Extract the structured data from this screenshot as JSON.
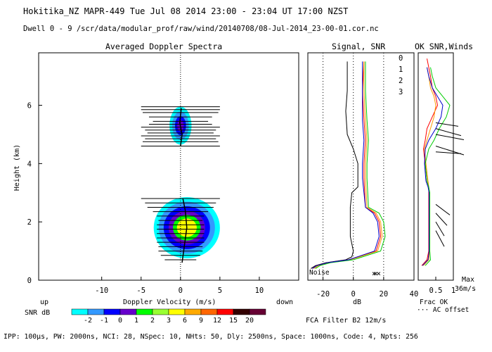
{
  "header": {
    "line1": "Hokitika_NZ   MAPR-449  Tue Jul 08 2014 23:00 - 23:04 UT 17:00 NZST",
    "line2": "Dwell  0 - 9  /scr/data/modular_prof/raw/wind/20140708/08-Jul-2014_23-00-01.cor.nc"
  },
  "footer": {
    "line": "IPP: 100µs,  PW: 2000ns,  NCI:  28,  NSpec: 10, NHts: 50,  Dly: 2500ns,  Space: 1000ns,  Code: 4,  Npts: 256",
    "filter": "FCA Filter B2 12m/s"
  },
  "panels": {
    "spectra_title": "Averaged Doppler Spectra",
    "signal_title": "Signal, SNR",
    "ok_title": "OK SNR,Winds",
    "noise_label": "Noise",
    "up_label": "up",
    "down_label": "down",
    "snr_label": "SNR dB",
    "frac_ok": "Frac OK",
    "ac_offset": "··· AC offset",
    "max_label": "Max",
    "max_value": "36m/s"
  },
  "legend_numbers": [
    {
      "label": "0",
      "color": "#ff0000"
    },
    {
      "label": "1",
      "color": "#ff9900"
    },
    {
      "label": "2",
      "color": "#00cc00"
    },
    {
      "label": "3",
      "color": "#0000cc"
    }
  ],
  "snr_scale": {
    "colors": [
      "#00ffff",
      "#3399ff",
      "#0000ff",
      "#6600cc",
      "#00ff00",
      "#99ff33",
      "#ffff00",
      "#ffaa00",
      "#ff6600",
      "#ff0000",
      "#330000",
      "#660033"
    ],
    "tick_labels": [
      "-2",
      "-1",
      "0",
      "1",
      "2",
      "3",
      "6",
      "9",
      "12",
      "15",
      "20"
    ]
  },
  "chart_data": [
    {
      "type": "heatmap",
      "title": "Averaged Doppler Spectra",
      "xlabel": "Doppler Velocity (m/s)",
      "ylabel": "Height (km)",
      "xlim": [
        -18,
        15
      ],
      "ylim": [
        0,
        7.8
      ],
      "xticks": [
        "-10",
        "-5",
        "0",
        "5",
        "10"
      ],
      "yticks": [
        "0",
        "2",
        "4",
        "6"
      ],
      "blobs": [
        {
          "name": "upper",
          "center_v": 0.0,
          "center_h": 5.3,
          "v_halfwidth": 1.4,
          "h_halfwidth": 0.65
        },
        {
          "name": "lower",
          "center_v": 0.8,
          "center_h": 1.8,
          "v_halfwidth": 4.2,
          "h_halfwidth": 1.05
        }
      ],
      "upper_bars": {
        "heights": [
          5.95,
          5.85,
          5.75,
          5.6,
          5.45,
          5.35,
          5.25,
          5.15,
          5.05,
          4.95,
          4.85,
          4.75,
          4.6
        ],
        "halfwidths": [
          5,
          5,
          4.8,
          4,
          3.5,
          4,
          5,
          4.5,
          4.2,
          5,
          4.5,
          4.8,
          5
        ]
      },
      "lower_bars": {
        "heights": [
          2.8,
          2.65,
          2.5,
          2.35,
          2.2,
          2.05,
          1.9,
          1.75,
          1.6,
          1.45,
          1.3,
          1.15,
          1.0,
          0.85,
          0.7
        ],
        "halfwidths": [
          5,
          4.5,
          4.2,
          3.5,
          3,
          2.8,
          3,
          3,
          3,
          3,
          3,
          2.8,
          2.8,
          2.5,
          2
        ]
      }
    },
    {
      "type": "line",
      "title": "Signal, SNR",
      "xlabel": "dB",
      "xlim": [
        -30,
        40
      ],
      "ylim": [
        0,
        7.8
      ],
      "xticks": [
        "-20",
        "0",
        "20",
        "40"
      ],
      "series": [
        {
          "name": "noise",
          "color": "#000000",
          "x": [
            -28,
            -25,
            -18,
            -5,
            -1,
            0,
            -2,
            -2,
            -1,
            3,
            3,
            0,
            -4,
            -5,
            -4,
            -4
          ],
          "y": [
            0.4,
            0.5,
            0.6,
            0.7,
            0.8,
            1.0,
            1.5,
            2.5,
            3.0,
            3.2,
            4.0,
            4.5,
            5.0,
            5.8,
            6.5,
            7.5
          ]
        },
        {
          "name": "0",
          "color": "#ff0000",
          "x": [
            -27,
            -24,
            -17,
            -3,
            15,
            18,
            17,
            14,
            8,
            7,
            7,
            8,
            7,
            6,
            7
          ],
          "y": [
            0.4,
            0.5,
            0.6,
            0.7,
            1.0,
            1.5,
            2.0,
            2.3,
            2.5,
            3.5,
            4.0,
            4.8,
            5.5,
            6.5,
            7.5
          ]
        },
        {
          "name": "1",
          "color": "#ff9900",
          "x": [
            -26,
            -23,
            -16,
            -2,
            16,
            19,
            18,
            15,
            9,
            8,
            8,
            9,
            8,
            7,
            7
          ],
          "y": [
            0.4,
            0.5,
            0.6,
            0.7,
            1.0,
            1.5,
            2.0,
            2.3,
            2.5,
            3.5,
            4.0,
            4.8,
            5.5,
            6.5,
            7.5
          ]
        },
        {
          "name": "2",
          "color": "#00cc00",
          "x": [
            -25,
            -22,
            -15,
            0,
            18,
            21,
            20,
            17,
            10,
            9,
            9,
            10,
            9,
            8,
            8
          ],
          "y": [
            0.4,
            0.5,
            0.6,
            0.7,
            1.0,
            1.5,
            2.0,
            2.3,
            2.5,
            3.5,
            4.0,
            4.8,
            5.5,
            6.5,
            7.5
          ]
        },
        {
          "name": "3",
          "color": "#0000cc",
          "x": [
            -27,
            -24,
            -17,
            -3,
            14,
            17,
            16,
            13,
            8,
            6,
            6,
            7,
            6,
            6,
            6
          ],
          "y": [
            0.4,
            0.5,
            0.6,
            0.7,
            1.0,
            1.5,
            2.0,
            2.3,
            2.5,
            3.5,
            4.0,
            4.8,
            5.5,
            6.5,
            7.5
          ]
        }
      ]
    },
    {
      "type": "line",
      "title": "OK SNR,Winds",
      "xlabel": "Frac OK",
      "xlim": [
        0,
        1
      ],
      "ylim": [
        0,
        7.8
      ],
      "xticks": [
        "0.5",
        "1"
      ],
      "series": [
        {
          "name": "0",
          "color": "#ff0000",
          "x": [
            0.1,
            0.25,
            0.3,
            0.3,
            0.3,
            0.3,
            0.25,
            0.2,
            0.15,
            0.2,
            0.25,
            0.4,
            0.55,
            0.5,
            0.4,
            0.35,
            0.3,
            0.25
          ],
          "y": [
            0.5,
            0.7,
            1.0,
            2.5,
            3.0,
            3.2,
            3.4,
            4.0,
            4.5,
            4.8,
            5.2,
            5.6,
            6.0,
            6.3,
            6.6,
            7.0,
            7.3,
            7.6
          ]
        },
        {
          "name": "1",
          "color": "#ff9900",
          "x": [
            0.15,
            0.3,
            0.32,
            0.32,
            0.32,
            0.3,
            0.28,
            0.22,
            0.18,
            0.25,
            0.35,
            0.45,
            0.5,
            0.45,
            0.35,
            0.3,
            0.25
          ],
          "y": [
            0.5,
            0.7,
            1.0,
            2.5,
            3.0,
            3.2,
            3.4,
            4.0,
            4.5,
            4.8,
            5.2,
            5.6,
            6.0,
            6.3,
            6.6,
            7.0,
            7.3
          ]
        },
        {
          "name": "2",
          "color": "#00cc00",
          "x": [
            0.2,
            0.35,
            0.33,
            0.33,
            0.33,
            0.3,
            0.25,
            0.2,
            0.3,
            0.45,
            0.6,
            0.8,
            0.9,
            0.7,
            0.5,
            0.4,
            0.35
          ],
          "y": [
            0.5,
            0.7,
            1.0,
            2.5,
            3.0,
            3.2,
            3.4,
            4.0,
            4.5,
            4.8,
            5.2,
            5.6,
            6.0,
            6.3,
            6.6,
            7.0,
            7.3
          ]
        },
        {
          "name": "3",
          "color": "#0000cc",
          "x": [
            0.12,
            0.28,
            0.31,
            0.31,
            0.31,
            0.28,
            0.22,
            0.18,
            0.2,
            0.3,
            0.5,
            0.65,
            0.7,
            0.55,
            0.4,
            0.3,
            0.25
          ],
          "y": [
            0.5,
            0.7,
            1.0,
            2.5,
            3.0,
            3.2,
            3.4,
            4.0,
            4.5,
            4.8,
            5.2,
            5.6,
            6.0,
            6.3,
            6.6,
            7.0,
            7.3
          ]
        }
      ],
      "wind_barbs": [
        {
          "h": 5.0,
          "u": 1,
          "v": -0.3
        },
        {
          "h": 5.2,
          "u": 0.9,
          "v": -0.4
        },
        {
          "h": 5.4,
          "u": 0.8,
          "v": -0.2
        },
        {
          "h": 4.6,
          "u": 1,
          "v": -0.5
        },
        {
          "h": 4.4,
          "u": 0.9,
          "v": -0.1
        },
        {
          "h": 2.6,
          "u": 0.5,
          "v": -0.6
        },
        {
          "h": 2.3,
          "u": 0.4,
          "v": -0.7
        },
        {
          "h": 2.0,
          "u": 0.3,
          "v": -0.8
        },
        {
          "h": 1.7,
          "u": 0.3,
          "v": -0.9
        }
      ]
    }
  ]
}
